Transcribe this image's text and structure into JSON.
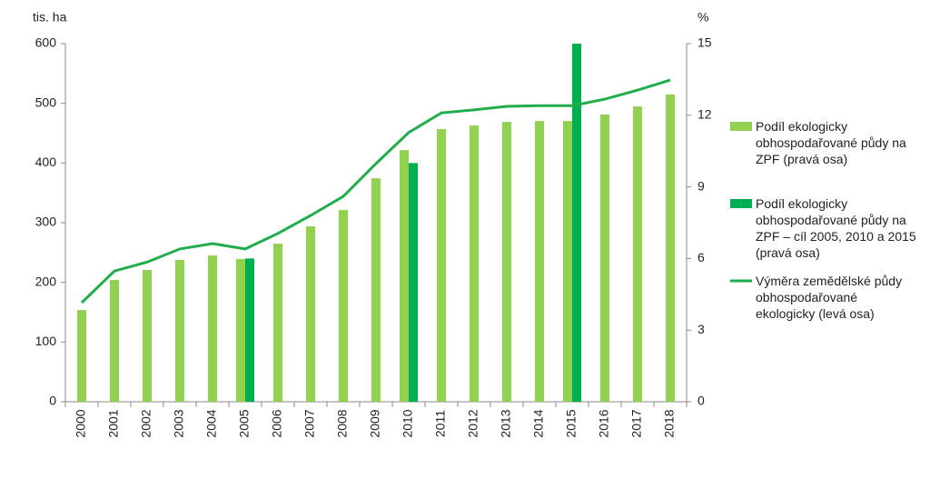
{
  "chart_data": {
    "type": "bar_line",
    "y_label": "tis. ha",
    "y2_label": "%",
    "categories": [
      "2000",
      "2001",
      "2002",
      "2003",
      "2004",
      "2005",
      "2006",
      "2007",
      "2008",
      "2009",
      "2010",
      "2011",
      "2012",
      "2013",
      "2014",
      "2015",
      "2016",
      "2017",
      "2018"
    ],
    "series": [
      {
        "name": "Podíl ekologicky obhospodařované půdy na ZPF (pravá osa)",
        "type": "bar",
        "axis": "y2",
        "color": "#92d050",
        "values": [
          3.84,
          5.1,
          5.52,
          5.94,
          6.13,
          5.98,
          6.62,
          7.35,
          8.03,
          9.36,
          10.54,
          11.42,
          11.57,
          11.72,
          11.76,
          11.76,
          12.03,
          12.37,
          12.87
        ]
      },
      {
        "name": "Podíl ekologicky obhospodařované půdy na ZPF – cíl 2005, 2010 a 2015 (pravá osa)",
        "type": "bar",
        "axis": "y2",
        "color": "#00b050",
        "values": [
          null,
          null,
          null,
          null,
          null,
          6,
          null,
          null,
          null,
          null,
          10,
          null,
          null,
          null,
          null,
          15,
          null,
          null,
          null
        ]
      },
      {
        "name": "Výměra zemědělské půdy obhospodařované ekologicky (levá osa)",
        "type": "line",
        "axis": "y",
        "color": "#1fae4b",
        "values": [
          166,
          219,
          234,
          256,
          265,
          256,
          282,
          312,
          344,
          399,
          451,
          484,
          489,
          495,
          496,
          496,
          507,
          522,
          539
        ]
      }
    ],
    "ylim": [
      0,
      600
    ],
    "yticks": [
      0,
      100,
      200,
      300,
      400,
      500,
      600
    ],
    "y2lim": [
      0,
      15
    ],
    "y2ticks": [
      0,
      3,
      6,
      9,
      12,
      15
    ],
    "grid": false,
    "legend": "right"
  }
}
